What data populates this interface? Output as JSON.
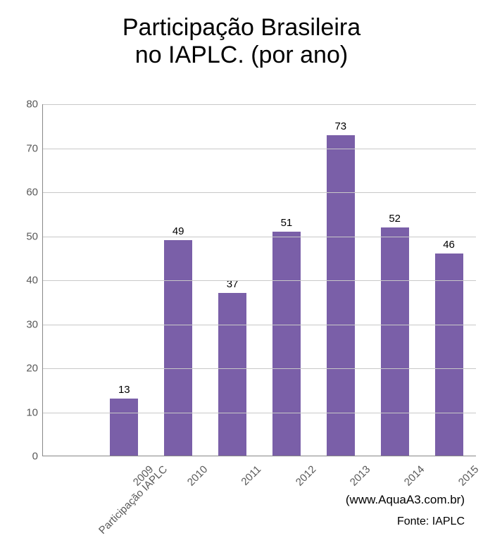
{
  "chart": {
    "type": "bar",
    "title_line1": "Participação Brasileira",
    "title_line2": "no IAPLC. (por ano)",
    "title_fontsize": 34,
    "title_color": "#000000",
    "background_color": "#ffffff",
    "plot": {
      "grid_color": "#c8c8c8",
      "axis_color": "#888888",
      "y": {
        "min": 0,
        "max": 80,
        "step": 10,
        "ticks": [
          0,
          10,
          20,
          30,
          40,
          50,
          60,
          70,
          80
        ],
        "label_color": "#595959",
        "label_fontsize": 15
      },
      "x": {
        "label_color": "#595959",
        "label_fontsize": 15,
        "rotation_deg": -45
      }
    },
    "bar_style": {
      "color": "#7a5fa8",
      "width_pct": 52,
      "value_label_fontsize": 15,
      "value_label_color": "#000000"
    },
    "categories": [
      {
        "label": "Participação IAPLC",
        "value": null
      },
      {
        "label": "2009",
        "value": 13
      },
      {
        "label": "2010",
        "value": 49
      },
      {
        "label": "2011",
        "value": 37
      },
      {
        "label": "2012",
        "value": 51
      },
      {
        "label": "2013",
        "value": 73
      },
      {
        "label": "2014",
        "value": 52
      },
      {
        "label": "2015",
        "value": 46
      }
    ],
    "attribution": "(www.AquaA3.com.br)",
    "attribution_fontsize": 17,
    "source": "Fonte: IAPLC",
    "source_fontsize": 16
  }
}
